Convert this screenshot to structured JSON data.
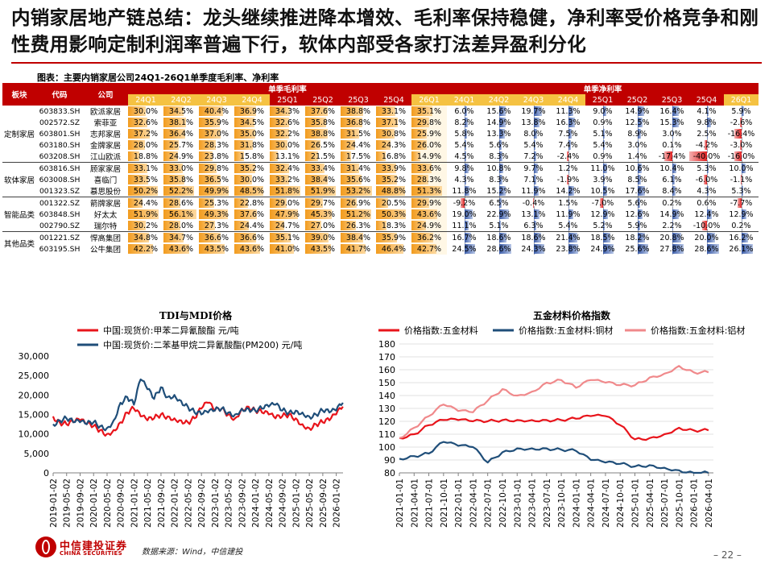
{
  "header": {
    "title": "内销家居地产链总结：龙头继续推进降本增效、毛利率保持稳健，净利率受价格竞争和刚性费用影响定制利润率普遍下行，软体内部受各家打法差异盈利分化",
    "figure_caption": "图表：主要内销家居公司24Q1-26Q1单季度毛利率、净利率"
  },
  "table": {
    "col_headers": {
      "segment": "板块",
      "code": "代码",
      "company": "公司",
      "gross_group": "单季毛利率",
      "net_group": "单季净利率"
    },
    "quarters": [
      "24Q1",
      "24Q2",
      "24Q3",
      "24Q4",
      "25Q1",
      "25Q2",
      "25Q3",
      "25Q4",
      "26Q1"
    ],
    "segments": [
      {
        "name": "定制家居",
        "rows": 5
      },
      {
        "name": "软体家居",
        "rows": 3
      },
      {
        "name": "智能品类",
        "rows": 3
      },
      {
        "name": "其他品类",
        "rows": 2
      }
    ],
    "rows": [
      {
        "code": "603833.SH",
        "name": "欧派家居",
        "gross": [
          30.0,
          34.5,
          40.4,
          36.9,
          34.3,
          37.6,
          38.8,
          33.1,
          35.1
        ],
        "net": [
          6.0,
          15.6,
          19.7,
          11.3,
          9.0,
          14.9,
          16.4,
          4.1,
          5.9
        ]
      },
      {
        "code": "002572.SZ",
        "name": "索菲亚",
        "gross": [
          32.6,
          38.1,
          35.9,
          34.5,
          32.6,
          35.8,
          36.8,
          37.1,
          29.8
        ],
        "net": [
          8.2,
          14.9,
          13.8,
          16.3,
          0.9,
          12.5,
          15.3,
          9.8,
          -2.6
        ]
      },
      {
        "code": "603801.SH",
        "name": "志邦家居",
        "gross": [
          37.2,
          36.4,
          37.0,
          35.0,
          32.2,
          38.8,
          31.5,
          30.8,
          25.9
        ],
        "net": [
          5.8,
          13.3,
          8.0,
          7.5,
          5.1,
          8.9,
          3.0,
          2.5,
          -16.4
        ]
      },
      {
        "code": "603180.SH",
        "name": "金牌家居",
        "gross": [
          28.0,
          25.7,
          28.3,
          31.8,
          30.0,
          26.5,
          24.4,
          24.3,
          26.0
        ],
        "net": [
          5.4,
          5.6,
          5.4,
          7.4,
          5.4,
          3.0,
          0.1,
          -4.2,
          -3.0
        ]
      },
      {
        "code": "603208.SH",
        "name": "江山欧派",
        "gross": [
          18.8,
          24.9,
          23.8,
          15.8,
          13.1,
          21.5,
          17.5,
          16.8,
          14.9
        ],
        "net": [
          4.5,
          8.3,
          7.2,
          -2.4,
          0.9,
          1.4,
          -17.4,
          -40.0,
          -16.0
        ]
      },
      {
        "code": "603816.SH",
        "name": "顾家家居",
        "gross": [
          33.1,
          33.0,
          29.8,
          35.2,
          32.4,
          33.4,
          31.4,
          33.9,
          33.6
        ],
        "net": [
          9.8,
          10.8,
          9.7,
          1.2,
          11.0,
          10.6,
          10.4,
          5.3,
          10.0
        ]
      },
      {
        "code": "603008.SH",
        "name": "喜临门",
        "gross": [
          33.5,
          35.8,
          36.5,
          30.0,
          33.2,
          38.4,
          35.6,
          35.2,
          28.3
        ],
        "net": [
          4.3,
          8.3,
          7.1,
          -1.9,
          3.9,
          8.5,
          6.1,
          -6.0,
          -1.1
        ]
      },
      {
        "code": "001323.SZ",
        "name": "慕思股份",
        "gross": [
          50.2,
          52.2,
          49.9,
          48.5,
          51.8,
          51.9,
          53.2,
          48.8,
          51.3
        ],
        "net": [
          11.8,
          15.2,
          11.9,
          14.2,
          10.5,
          17.6,
          8.4,
          4.3,
          5.3
        ]
      },
      {
        "code": "001322.SZ",
        "name": "箭牌家居",
        "gross": [
          24.4,
          28.6,
          25.3,
          22.8,
          29.0,
          29.7,
          26.9,
          20.5,
          29.9
        ],
        "net": [
          -9.2,
          6.5,
          -0.4,
          1.5,
          -7.0,
          5.6,
          0.2,
          0.6,
          -7.7
        ]
      },
      {
        "code": "603848.SH",
        "name": "好太太",
        "gross": [
          51.9,
          56.1,
          49.3,
          37.6,
          47.9,
          45.3,
          51.2,
          50.3,
          43.6
        ],
        "net": [
          19.0,
          22.9,
          13.1,
          11.9,
          12.9,
          12.6,
          14.9,
          12.4,
          12.9
        ]
      },
      {
        "code": "002790.SZ",
        "name": "瑞尔特",
        "gross": [
          30.2,
          28.0,
          27.3,
          24.4,
          24.7,
          27.0,
          26.3,
          18.3,
          24.9
        ],
        "net": [
          11.1,
          5.1,
          6.3,
          5.4,
          5.2,
          5.9,
          2.2,
          -10.0,
          0.2
        ]
      },
      {
        "code": "001221.SZ",
        "name": "悍高集团",
        "gross": [
          34.8,
          34.7,
          36.6,
          36.6,
          35.1,
          39.0,
          38.4,
          35.9,
          36.2
        ],
        "net": [
          16.7,
          18.6,
          18.6,
          21.4,
          18.5,
          18.2,
          20.8,
          20.0,
          16.2
        ]
      },
      {
        "code": "603195.SH",
        "name": "公牛集团",
        "gross": [
          42.2,
          43.6,
          43.5,
          43.6,
          41.0,
          43.5,
          41.7,
          46.4,
          42.7
        ],
        "net": [
          24.5,
          28.6,
          24.3,
          23.8,
          24.9,
          25.6,
          27.8,
          28.6,
          26.1
        ]
      }
    ]
  },
  "chart_data": [
    {
      "type": "line",
      "title": "TDI与MDI价格",
      "series": [
        {
          "name": "中国:现货价:甲苯二异氰酸酯 元/吨",
          "color": "#e8141b",
          "x": [
            "2019-01",
            "2019-03",
            "2019-05",
            "2019-07",
            "2019-09",
            "2019-11",
            "2020-01",
            "2020-03",
            "2020-05",
            "2020-07",
            "2020-09",
            "2020-11",
            "2021-01",
            "2021-03",
            "2021-05",
            "2021-07",
            "2021-09",
            "2021-11",
            "2022-01",
            "2022-03",
            "2022-05",
            "2022-07",
            "2022-09",
            "2022-11",
            "2023-01",
            "2023-03",
            "2023-05",
            "2023-07",
            "2023-09",
            "2023-11",
            "2024-01",
            "2024-03",
            "2024-05",
            "2024-07",
            "2024-09",
            "2024-11",
            "2025-01",
            "2025-03",
            "2025-05",
            "2025-07",
            "2025-09",
            "2025-11",
            "2026-01",
            "2026-03"
          ],
          "y": [
            14500,
            13000,
            12500,
            13000,
            13500,
            12500,
            12000,
            11000,
            10000,
            11000,
            13000,
            15500,
            16500,
            14500,
            13500,
            14000,
            15000,
            14500,
            14000,
            13500,
            13000,
            14000,
            16500,
            18000,
            16000,
            16500,
            15000,
            14000,
            16500,
            17000,
            16000,
            15500,
            15000,
            14000,
            14500,
            15000,
            14000,
            12500,
            11500,
            12500,
            13000,
            13500,
            15000,
            17000
          ]
        },
        {
          "name": "中国:现货价:二苯基甲烷二异氰酸酯(PM200) 元/吨",
          "color": "#1f4e79",
          "x": [
            "2019-01",
            "2019-03",
            "2019-05",
            "2019-07",
            "2019-09",
            "2019-11",
            "2020-01",
            "2020-03",
            "2020-05",
            "2020-07",
            "2020-09",
            "2020-11",
            "2021-01",
            "2021-03",
            "2021-05",
            "2021-07",
            "2021-09",
            "2021-11",
            "2022-01",
            "2022-03",
            "2022-05",
            "2022-07",
            "2022-09",
            "2022-11",
            "2023-01",
            "2023-03",
            "2023-05",
            "2023-07",
            "2023-09",
            "2023-11",
            "2024-01",
            "2024-03",
            "2024-05",
            "2024-07",
            "2024-09",
            "2024-11",
            "2025-01",
            "2025-03",
            "2025-05",
            "2025-07",
            "2025-09",
            "2025-11",
            "2026-01",
            "2026-03"
          ],
          "y": [
            12500,
            13500,
            14000,
            13000,
            13000,
            12500,
            13000,
            12000,
            11500,
            13500,
            18000,
            19500,
            17500,
            24000,
            21500,
            19000,
            22000,
            19500,
            20000,
            18500,
            17000,
            15500,
            15000,
            15500,
            16000,
            16500,
            15500,
            15000,
            16500,
            16500,
            16000,
            16500,
            17000,
            17500,
            16000,
            15500,
            16000,
            15500,
            14500,
            15000,
            16000,
            15500,
            16000,
            18000
          ]
        }
      ],
      "ylim": [
        0,
        30000
      ],
      "yticks": [
        "0",
        "5,000",
        "10,000",
        "15,000",
        "20,000",
        "25,000",
        "30,000"
      ],
      "xticks": [
        "2019-01-02",
        "2019-05-02",
        "2019-09-02",
        "2020-01-02",
        "2020-05-02",
        "2020-09-02",
        "2021-01-02",
        "2021-05-02",
        "2021-09-02",
        "2022-01-02",
        "2022-05-02",
        "2022-09-02",
        "2023-01-02",
        "2023-05-02",
        "2023-09-02",
        "2024-01-02",
        "2024-05-02",
        "2024-09-02",
        "2025-01-02",
        "2025-05-02",
        "2025-09-02",
        "2026-01-02"
      ],
      "legend": "top"
    },
    {
      "type": "line",
      "title": "五金材料价格指数",
      "series": [
        {
          "name": "价格指数:五金材料",
          "color": "#e8141b",
          "x": [
            "2021-01",
            "2021-04",
            "2021-07",
            "2021-10",
            "2022-01",
            "2022-04",
            "2022-07",
            "2022-10",
            "2023-01",
            "2023-04",
            "2023-07",
            "2023-10",
            "2024-01",
            "2024-04",
            "2024-07",
            "2024-10",
            "2025-01",
            "2025-04",
            "2025-07",
            "2025-10",
            "2026-01",
            "2026-04"
          ],
          "y": [
            107,
            110,
            117,
            121,
            121,
            120,
            120,
            121,
            121,
            121,
            121,
            121,
            122,
            124,
            124,
            117,
            106,
            107,
            110,
            115,
            113,
            113
          ]
        },
        {
          "name": "价格指数:五金材料:铜材",
          "color": "#1f4e79",
          "x": [
            "2021-01",
            "2021-04",
            "2021-07",
            "2021-10",
            "2022-01",
            "2022-04",
            "2022-07",
            "2022-10",
            "2023-01",
            "2023-04",
            "2023-07",
            "2023-10",
            "2024-01",
            "2024-04",
            "2024-07",
            "2024-10",
            "2025-01",
            "2025-04",
            "2025-07",
            "2025-10",
            "2026-01",
            "2026-04"
          ],
          "y": [
            91,
            93,
            95,
            104,
            101,
            100,
            88,
            96,
            99,
            99,
            99,
            98,
            97,
            90,
            88,
            87,
            85,
            86,
            84,
            82,
            80,
            80
          ]
        },
        {
          "name": "价格指数:五金材料:铝材",
          "color": "#f0898b",
          "x": [
            "2021-01",
            "2021-04",
            "2021-07",
            "2021-10",
            "2022-01",
            "2022-04",
            "2022-07",
            "2022-10",
            "2023-01",
            "2023-04",
            "2023-07",
            "2023-10",
            "2024-01",
            "2024-04",
            "2024-07",
            "2024-10",
            "2025-01",
            "2025-04",
            "2025-07",
            "2025-10",
            "2026-01",
            "2026-04"
          ],
          "y": [
            107,
            115,
            124,
            133,
            128,
            127,
            136,
            145,
            140,
            143,
            150,
            152,
            146,
            152,
            150,
            148,
            148,
            154,
            157,
            163,
            158,
            158
          ]
        }
      ],
      "ylim": [
        80,
        180
      ],
      "yticks": [
        "80",
        "90",
        "100",
        "110",
        "120",
        "130",
        "140",
        "150",
        "160",
        "170",
        "180"
      ],
      "xticks": [
        "2021-01-01",
        "2021-04-01",
        "2021-07-01",
        "2021-10-01",
        "2022-01-01",
        "2022-04-01",
        "2022-07-01",
        "2022-10-01",
        "2023-01-01",
        "2023-04-01",
        "2023-07-01",
        "2023-10-01",
        "2024-01-01",
        "2024-04-01",
        "2024-07-01",
        "2024-10-01",
        "2025-01-01",
        "2025-04-01",
        "2025-07-01",
        "2025-10-01",
        "2026-01-01",
        "2026-04-01"
      ],
      "legend": "top"
    }
  ],
  "footer": {
    "source": "数据来源：Wind，中信建投",
    "page": "– 22 –",
    "logo_cn": "中信建投证券",
    "logo_en": "CHINA SECURITIES"
  },
  "colors": {
    "accent_red": "#c00000",
    "highlight_orange": "#f5c242"
  }
}
